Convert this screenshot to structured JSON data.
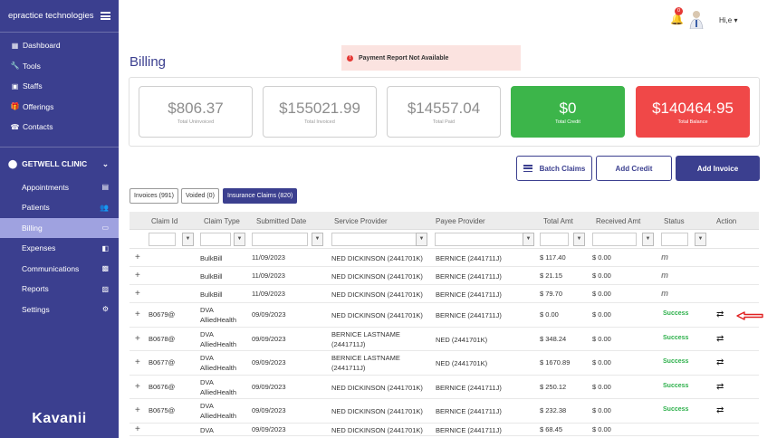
{
  "sidebar": {
    "brand": "epractice technologies",
    "nav": [
      {
        "label": "Dashboard",
        "icon": "dashboard-icon",
        "glyph": "▦"
      },
      {
        "label": "Tools",
        "icon": "wrench-icon",
        "glyph": "🔧"
      },
      {
        "label": "Staffs",
        "icon": "id-card-icon",
        "glyph": "▣"
      },
      {
        "label": "Offerings",
        "icon": "gift-icon",
        "glyph": "🎁"
      },
      {
        "label": "Contacts",
        "icon": "contacts-icon",
        "glyph": "☎"
      }
    ],
    "clinic": "GETWELL CLINIC",
    "sub_nav": [
      {
        "label": "Appointments",
        "icon": "calendar-icon",
        "glyph": "▤"
      },
      {
        "label": "Patients",
        "icon": "users-icon",
        "glyph": "👥"
      },
      {
        "label": "Billing",
        "icon": "credit-card-icon",
        "glyph": "▭"
      },
      {
        "label": "Expenses",
        "icon": "wallet-icon",
        "glyph": "◧"
      },
      {
        "label": "Communications",
        "icon": "chat-icon",
        "glyph": "▩"
      },
      {
        "label": "Reports",
        "icon": "report-icon",
        "glyph": "▨"
      },
      {
        "label": "Settings",
        "icon": "gear-icon",
        "glyph": "⚙"
      }
    ],
    "logo": "Kavanii"
  },
  "header": {
    "notification_count": "0",
    "greeting": "Hi,e ▾"
  },
  "page": {
    "title": "Billing",
    "alert": "Payment Report Not Available",
    "alert_glyph": "!"
  },
  "cards": [
    {
      "value": "$806.37",
      "label": "Total Uninvoiced"
    },
    {
      "value": "$155021.99",
      "label": "Total Invoiced"
    },
    {
      "value": "$14557.04",
      "label": "Total Paid"
    },
    {
      "value": "$0",
      "label": "Total Credit"
    },
    {
      "value": "$140464.95",
      "label": "Total Balance"
    }
  ],
  "buttons": {
    "batch_claims": "Batch Claims",
    "add_credit": "Add Credit",
    "add_invoice": "Add Invoice"
  },
  "tabs": {
    "invoices": "Invoices (991)",
    "voided": "Voided (0)",
    "insurance_claims": "Insurance Claims (820)"
  },
  "table": {
    "columns": [
      "Claim Id",
      "Claim Type",
      "Submitted Date",
      "Service Provider",
      "Payee Provider",
      "Total Amt",
      "Received Amt",
      "Status",
      "Action"
    ],
    "filter_glyph": "▼",
    "expand_glyph": "+",
    "action_glyph": "⇄",
    "rows": [
      {
        "claim_id": "",
        "claim_type": [
          "BulkBill"
        ],
        "date": "11/09/2023",
        "service": [
          "NED DICKINSON (2441701K)"
        ],
        "payee": [
          "BERNICE (2441711J)"
        ],
        "total": "$ 117.40",
        "received": "$ 0.00",
        "status": "m",
        "status_kind": "pending",
        "action": false
      },
      {
        "claim_id": "",
        "claim_type": [
          "BulkBill"
        ],
        "date": "11/09/2023",
        "service": [
          "NED DICKINSON (2441701K)"
        ],
        "payee": [
          "BERNICE (2441711J)"
        ],
        "total": "$ 21.15",
        "received": "$ 0.00",
        "status": "m",
        "status_kind": "pending",
        "action": false
      },
      {
        "claim_id": "",
        "claim_type": [
          "BulkBill"
        ],
        "date": "11/09/2023",
        "service": [
          "NED DICKINSON (2441701K)"
        ],
        "payee": [
          "BERNICE (2441711J)"
        ],
        "total": "$ 79.70",
        "received": "$ 0.00",
        "status": "m",
        "status_kind": "pending",
        "action": false
      },
      {
        "claim_id": "B0679@",
        "claim_type": [
          "DVA",
          "AlliedHealth"
        ],
        "date": "09/09/2023",
        "service": [
          "NED DICKINSON (2441701K)"
        ],
        "payee": [
          "BERNICE (2441711J)"
        ],
        "total": "$ 0.00",
        "received": "$ 0.00",
        "status": "Success",
        "status_kind": "success",
        "action": true
      },
      {
        "claim_id": "B0678@",
        "claim_type": [
          "DVA",
          "AlliedHealth"
        ],
        "date": "09/09/2023",
        "service": [
          "BERNICE LASTNAME",
          "(2441711J)"
        ],
        "payee": [
          "NED (2441701K)"
        ],
        "total": "$ 348.24",
        "received": "$ 0.00",
        "status": "Success",
        "status_kind": "success",
        "action": true
      },
      {
        "claim_id": "B0677@",
        "claim_type": [
          "DVA",
          "AlliedHealth"
        ],
        "date": "09/09/2023",
        "service": [
          "BERNICE LASTNAME",
          "(2441711J)"
        ],
        "payee": [
          "NED (2441701K)"
        ],
        "total": "$ 1670.89",
        "received": "$ 0.00",
        "status": "Success",
        "status_kind": "success",
        "action": true
      },
      {
        "claim_id": "B0676@",
        "claim_type": [
          "DVA",
          "AlliedHealth"
        ],
        "date": "09/09/2023",
        "service": [
          "NED DICKINSON (2441701K)"
        ],
        "payee": [
          "BERNICE (2441711J)"
        ],
        "total": "$ 250.12",
        "received": "$ 0.00",
        "status": "Success",
        "status_kind": "success",
        "action": true
      },
      {
        "claim_id": "B0675@",
        "claim_type": [
          "DVA",
          "AlliedHealth"
        ],
        "date": "09/09/2023",
        "service": [
          "NED DICKINSON (2441701K)"
        ],
        "payee": [
          "BERNICE (2441711J)"
        ],
        "total": "$ 232.38",
        "received": "$ 0.00",
        "status": "Success",
        "status_kind": "success",
        "action": true
      },
      {
        "claim_id": "",
        "claim_type": [
          "DVA"
        ],
        "date": "09/09/2023",
        "service": [
          "NED DICKINSON (2441701K)"
        ],
        "payee": [
          "BERNICE (2441711J)"
        ],
        "total": "$ 68.45",
        "received": "$ 0.00",
        "status": "",
        "status_kind": "none",
        "action": false
      }
    ]
  },
  "colors": {
    "sidebar": "#3b3f8f",
    "active_nav": "#9fa2e0",
    "credit_card": "#3cb54a",
    "balance_card": "#f04848",
    "success": "#2db04b",
    "annotation_arrow": "#e02020"
  }
}
